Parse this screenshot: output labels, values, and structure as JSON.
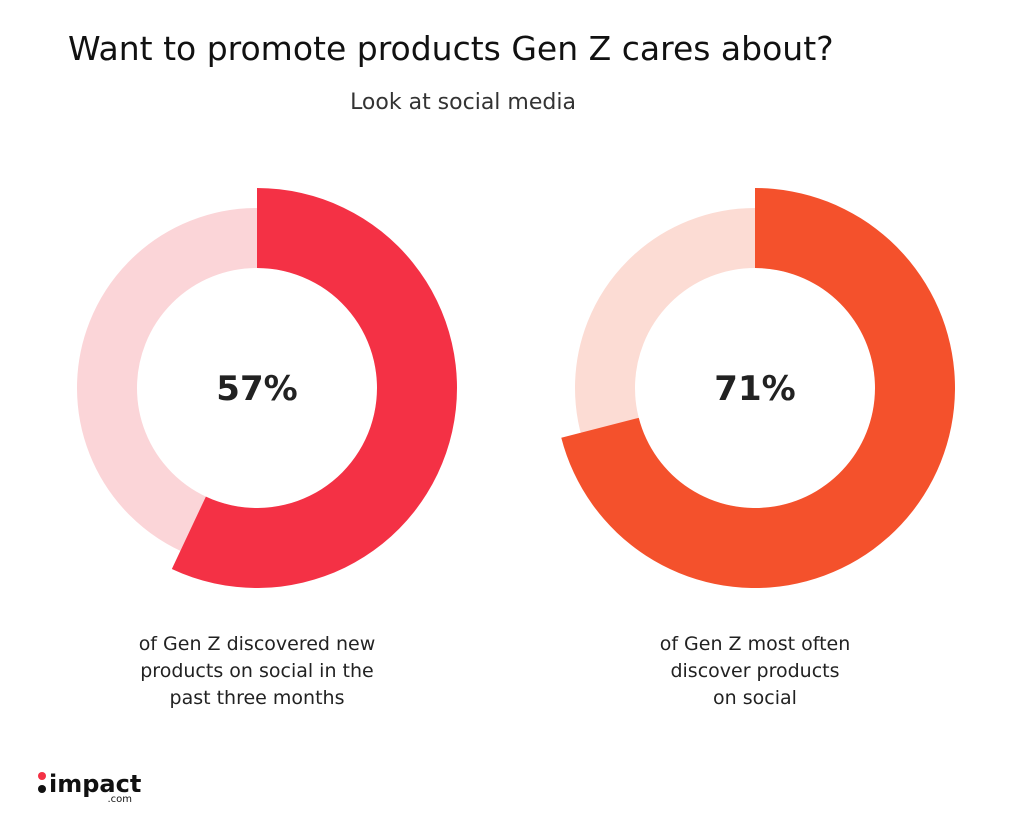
{
  "title": "Want to promote products Gen Z cares about?",
  "subtitle": "Look at social media",
  "chart_data": [
    {
      "type": "donut",
      "values": [
        57
      ],
      "value_labels": [
        "57%"
      ],
      "range": [
        0,
        100
      ],
      "color": "#f43145",
      "track_color": "#fbd5d8",
      "caption": [
        "of Gen Z discovered new",
        "products on social in the",
        "past three months"
      ]
    },
    {
      "type": "donut",
      "values": [
        71
      ],
      "value_labels": [
        "71%"
      ],
      "range": [
        0,
        100
      ],
      "color": "#f4512c",
      "track_color": "#fcdcd4",
      "caption": [
        "of Gen Z most often",
        "discover products",
        "on social"
      ]
    }
  ],
  "logo": {
    "name": "impact",
    "domain": ".com"
  }
}
